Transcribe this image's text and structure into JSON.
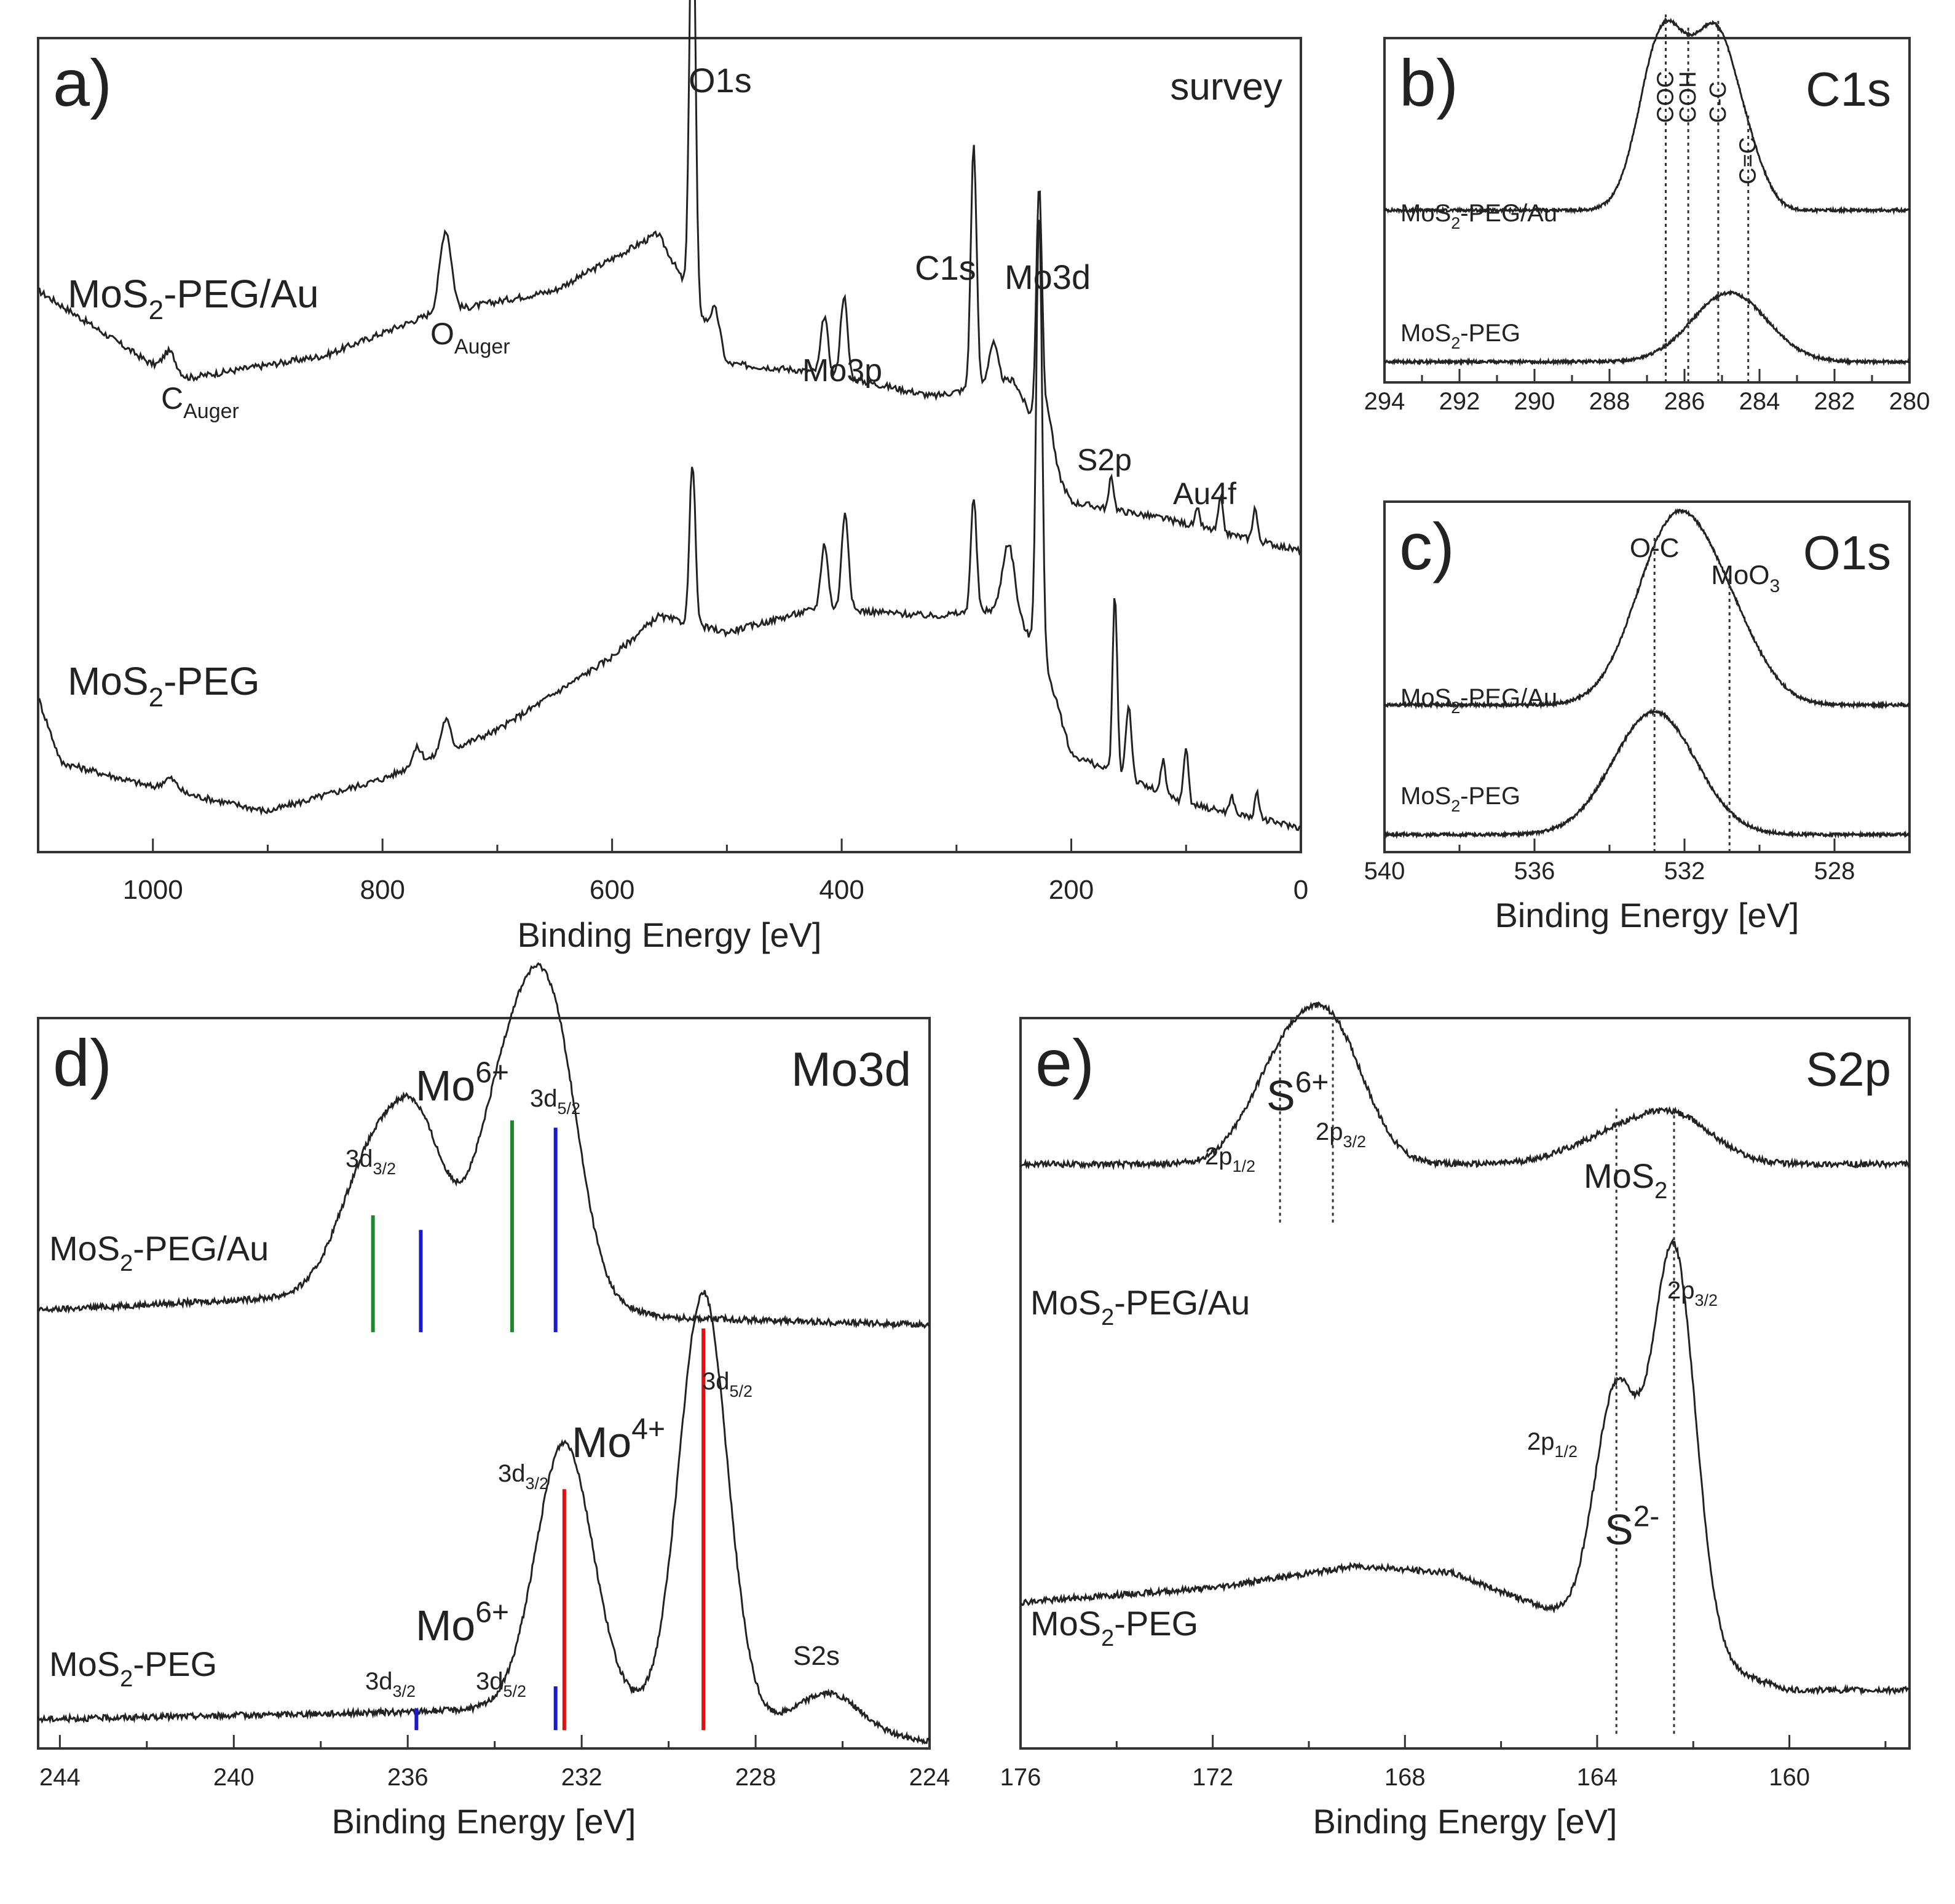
{
  "figure": {
    "xlabel": "Binding Energy [eV]"
  },
  "chart_data": [
    {
      "id": "a",
      "type": "line",
      "letter": "a)",
      "title": "survey",
      "xlabel": "Binding Energy [eV]",
      "xlim": [
        1100,
        0
      ],
      "ylim": [
        0,
        1
      ],
      "xticks": [
        "1000",
        "800",
        "600",
        "400",
        "200",
        "0"
      ],
      "series": [
        {
          "name": "MoS2-PEG/Au",
          "baseline": [
            [
              1100,
              0.69
            ],
            [
              980,
              0.58
            ],
            [
              850,
              0.61
            ],
            [
              760,
              0.66
            ],
            [
              650,
              0.69
            ],
            [
              560,
              0.76
            ],
            [
              500,
              0.6
            ],
            [
              420,
              0.59
            ],
            [
              320,
              0.56
            ],
            [
              250,
              0.58
            ],
            [
              200,
              0.43
            ],
            [
              120,
              0.41
            ],
            [
              0,
              0.37
            ]
          ],
          "peaks": [
            [
              985,
              0.03,
              6
            ],
            [
              745,
              0.1,
              5
            ],
            [
              530,
              0.55,
              2.5
            ],
            [
              510,
              0.04,
              4
            ],
            [
              415,
              0.07,
              3
            ],
            [
              398,
              0.1,
              3
            ],
            [
              285,
              0.3,
              2.5
            ],
            [
              268,
              0.05,
              4
            ],
            [
              228,
              0.3,
              2.5
            ],
            [
              220,
              0.05,
              4
            ],
            [
              165,
              0.04,
              2
            ],
            [
              90,
              0.02,
              2
            ],
            [
              70,
              0.04,
              2
            ],
            [
              40,
              0.04,
              2
            ]
          ]
        },
        {
          "name": "MoS2-PEG",
          "baseline": [
            [
              1100,
              0.19
            ],
            [
              1080,
              0.11
            ],
            [
              1000,
              0.08
            ],
            [
              900,
              0.05
            ],
            [
              800,
              0.09
            ],
            [
              700,
              0.15
            ],
            [
              600,
              0.24
            ],
            [
              560,
              0.29
            ],
            [
              500,
              0.27
            ],
            [
              420,
              0.3
            ],
            [
              320,
              0.29
            ],
            [
              250,
              0.3
            ],
            [
              220,
              0.22
            ],
            [
              200,
              0.12
            ],
            [
              100,
              0.06
            ],
            [
              0,
              0.03
            ]
          ],
          "peaks": [
            [
              985,
              0.015,
              6
            ],
            [
              745,
              0.04,
              4
            ],
            [
              770,
              0.02,
              4
            ],
            [
              530,
              0.2,
              2.5
            ],
            [
              415,
              0.08,
              3
            ],
            [
              397,
              0.12,
              3
            ],
            [
              285,
              0.14,
              2.5
            ],
            [
              255,
              0.08,
              5
            ],
            [
              228,
              0.55,
              2.5
            ],
            [
              162,
              0.22,
              2
            ],
            [
              150,
              0.09,
              2.5
            ],
            [
              120,
              0.04,
              2
            ],
            [
              100,
              0.07,
              2
            ],
            [
              60,
              0.02,
              2
            ],
            [
              38,
              0.03,
              2
            ]
          ]
        }
      ],
      "labels": [
        {
          "text": "MoS2-PEG/Au",
          "parts": [
            "MoS",
            "2",
            "-PEG/Au"
          ]
        },
        {
          "text": "MoS2-PEG",
          "parts": [
            "MoS",
            "2",
            "-PEG"
          ]
        },
        {
          "text": "CAuger",
          "parts": [
            "C",
            "Auger"
          ]
        },
        {
          "text": "OAuger",
          "parts": [
            "O",
            "Auger"
          ]
        },
        {
          "text": "O1s"
        },
        {
          "text": "Mo3p"
        },
        {
          "text": "C1s"
        },
        {
          "text": "Mo3d"
        },
        {
          "text": "S2p"
        },
        {
          "text": "Au4f"
        }
      ]
    },
    {
      "id": "b",
      "type": "line",
      "letter": "b)",
      "title": "C1s",
      "xlabel": "",
      "xlim": [
        294,
        280
      ],
      "ylim": [
        0,
        1
      ],
      "xticks": [
        "294",
        "292",
        "290",
        "288",
        "286",
        "284",
        "282",
        "280"
      ],
      "series": [
        {
          "name": "MoS2-PEG/Au",
          "base": 0.5,
          "peaks": [
            [
              286.6,
              0.5,
              0.6
            ],
            [
              285.1,
              0.46,
              0.55
            ],
            [
              284.2,
              0.1,
              0.45
            ],
            [
              285.8,
              0.1,
              0.5
            ]
          ]
        },
        {
          "name": "MoS2-PEG",
          "base": 0.06,
          "peaks": [
            [
              284.8,
              0.2,
              1.0
            ]
          ]
        }
      ],
      "markers": [
        {
          "x": 286.5,
          "label": "COC"
        },
        {
          "x": 285.9,
          "label": "COH"
        },
        {
          "x": 285.1,
          "label": "C-C"
        },
        {
          "x": 284.3,
          "label": "C=C"
        }
      ],
      "labels": [
        {
          "text": "MoS2-PEG/Au",
          "parts": [
            "MoS",
            "2",
            "-PEG/Au"
          ]
        },
        {
          "text": "MoS2-PEG",
          "parts": [
            "MoS",
            "2",
            "-PEG"
          ]
        }
      ]
    },
    {
      "id": "c",
      "type": "line",
      "letter": "c)",
      "title": "O1s",
      "xlabel": "Binding Energy [eV]",
      "xlim": [
        540,
        526
      ],
      "ylim": [
        0,
        1
      ],
      "xticks": [
        "540",
        "536",
        "532",
        "528"
      ],
      "series": [
        {
          "name": "MoS2-PEG/Au",
          "base": 0.42,
          "peaks": [
            [
              532.3,
              0.5,
              1.0
            ],
            [
              530.8,
              0.18,
              0.9
            ]
          ]
        },
        {
          "name": "MoS2-PEG",
          "base": 0.05,
          "peaks": [
            [
              532.8,
              0.35,
              1.1
            ]
          ]
        }
      ],
      "markers": [
        {
          "x": 532.8,
          "label": "O-C"
        },
        {
          "x": 530.8,
          "label": "MoO3"
        }
      ],
      "labels": [
        {
          "text": "MoS2-PEG/Au",
          "parts": [
            "MoS",
            "2",
            "-PEG/Au"
          ]
        },
        {
          "text": "MoS2-PEG",
          "parts": [
            "MoS",
            "2",
            "-PEG"
          ]
        }
      ]
    },
    {
      "id": "d",
      "type": "line",
      "letter": "d)",
      "title": "Mo3d",
      "xlabel": "Binding Energy [eV]",
      "xlim": [
        244.5,
        224
      ],
      "ylim": [
        0,
        1
      ],
      "xticks": [
        "244",
        "240",
        "236",
        "232",
        "228",
        "224"
      ],
      "series": [
        {
          "name": "MoS2-PEG/Au",
          "baseline": [
            [
              244.5,
              0.6
            ],
            [
              238,
              0.62
            ],
            [
              236,
              0.64
            ],
            [
              234,
              0.62
            ],
            [
              232,
              0.61
            ],
            [
              230,
              0.59
            ],
            [
              224,
              0.58
            ]
          ],
          "peaks": [
            [
              236.8,
              0.18,
              0.75
            ],
            [
              235.7,
              0.17,
              0.6
            ],
            [
              233.6,
              0.32,
              0.75
            ],
            [
              232.6,
              0.28,
              0.6
            ]
          ]
        },
        {
          "name": "MoS2-PEG",
          "baseline": [
            [
              244.5,
              0.04
            ],
            [
              236,
              0.05
            ],
            [
              232,
              0.06
            ],
            [
              230,
              0.05
            ],
            [
              224,
              0.01
            ]
          ],
          "peaks": [
            [
              232.4,
              0.36,
              0.65
            ],
            [
              229.2,
              0.58,
              0.55
            ],
            [
              226.3,
              0.05,
              0.7
            ]
          ]
        }
      ],
      "sticks": [
        {
          "x": 236.8,
          "height": 0.16,
          "trace": "MoS2-PEG/Au",
          "color": "#1a8a2a"
        },
        {
          "x": 235.7,
          "height": 0.14,
          "trace": "MoS2-PEG/Au",
          "color": "#1a1acc"
        },
        {
          "x": 233.6,
          "height": 0.29,
          "trace": "MoS2-PEG/Au",
          "color": "#1a8a2a"
        },
        {
          "x": 232.6,
          "height": 0.28,
          "trace": "MoS2-PEG/Au",
          "color": "#1a1acc"
        },
        {
          "x": 232.4,
          "height": 0.33,
          "trace": "MoS2-PEG",
          "color": "#e01010"
        },
        {
          "x": 229.2,
          "height": 0.55,
          "trace": "MoS2-PEG",
          "color": "#e01010"
        },
        {
          "x": 235.8,
          "height": 0.03,
          "trace": "MoS2-PEG",
          "color": "#1a1acc"
        },
        {
          "x": 232.6,
          "height": 0.06,
          "trace": "MoS2-PEG",
          "color": "#1a1acc"
        }
      ],
      "labels": [
        {
          "text": "MoS2-PEG/Au",
          "parts": [
            "MoS",
            "2",
            "-PEG/Au"
          ]
        },
        {
          "text": "MoS2-PEG",
          "parts": [
            "MoS",
            "2",
            "-PEG"
          ]
        },
        {
          "text": "Mo6+",
          "parts": [
            "Mo",
            "6+"
          ]
        },
        {
          "text": "3d3/2",
          "parts": [
            "3d",
            "3/2"
          ]
        },
        {
          "text": "3d5/2",
          "parts": [
            "3d",
            "5/2"
          ]
        },
        {
          "text": "Mo4+",
          "parts": [
            "Mo",
            "4+"
          ]
        },
        {
          "text": "3d3/2",
          "parts": [
            "3d",
            "3/2"
          ]
        },
        {
          "text": "3d5/2",
          "parts": [
            "3d",
            "5/2"
          ]
        },
        {
          "text": "Mo6+",
          "parts": [
            "Mo",
            "6+"
          ]
        },
        {
          "text": "3d3/2",
          "parts": [
            "3d",
            "3/2"
          ]
        },
        {
          "text": "3d5/2",
          "parts": [
            "3d",
            "5/2"
          ]
        },
        {
          "text": "S2s"
        }
      ]
    },
    {
      "id": "e",
      "type": "line",
      "letter": "e)",
      "title": "S2p",
      "xlabel": "Binding Energy [eV]",
      "xlim": [
        176,
        157.5
      ],
      "ylim": [
        0,
        1
      ],
      "xticks": [
        "176",
        "172",
        "168",
        "164",
        "160"
      ],
      "series": [
        {
          "name": "MoS2-PEG/Au",
          "base": 0.8,
          "peaks": [
            [
              170.6,
              0.12,
              0.7
            ],
            [
              169.5,
              0.17,
              0.7
            ],
            [
              163.5,
              0.04,
              1.0
            ],
            [
              162.3,
              0.05,
              0.8
            ]
          ]
        },
        {
          "name": "MoS2-PEG",
          "baseline": [
            [
              176,
              0.2
            ],
            [
              172,
              0.22
            ],
            [
              169,
              0.25
            ],
            [
              167,
              0.24
            ],
            [
              165,
              0.19
            ],
            [
              164.6,
              0.18
            ],
            [
              160,
              0.08
            ],
            [
              157.5,
              0.08
            ]
          ],
          "peaks": [
            [
              163.6,
              0.33,
              0.45
            ],
            [
              162.4,
              0.55,
              0.45
            ]
          ]
        }
      ],
      "markers": [
        {
          "x": 170.6,
          "trace": "MoS2-PEG/Au"
        },
        {
          "x": 169.5,
          "trace": "MoS2-PEG/Au"
        },
        {
          "x": 163.6,
          "trace": "both"
        },
        {
          "x": 162.4,
          "trace": "both"
        }
      ],
      "labels": [
        {
          "text": "MoS2-PEG/Au",
          "parts": [
            "MoS",
            "2",
            "-PEG/Au"
          ]
        },
        {
          "text": "MoS2-PEG",
          "parts": [
            "MoS",
            "2",
            "-PEG"
          ]
        },
        {
          "text": "S6+",
          "parts": [
            "S",
            "6+"
          ]
        },
        {
          "text": "2p1/2",
          "parts": [
            "2p",
            "1/2"
          ]
        },
        {
          "text": "2p3/2",
          "parts": [
            "2p",
            "3/2"
          ]
        },
        {
          "text": "MoS2",
          "parts": [
            "MoS",
            "2"
          ]
        },
        {
          "text": "2p3/2",
          "parts": [
            "2p",
            "3/2"
          ]
        },
        {
          "text": "2p1/2",
          "parts": [
            "2p",
            "1/2"
          ]
        },
        {
          "text": "S2-",
          "parts": [
            "S",
            "2-"
          ]
        }
      ]
    }
  ]
}
